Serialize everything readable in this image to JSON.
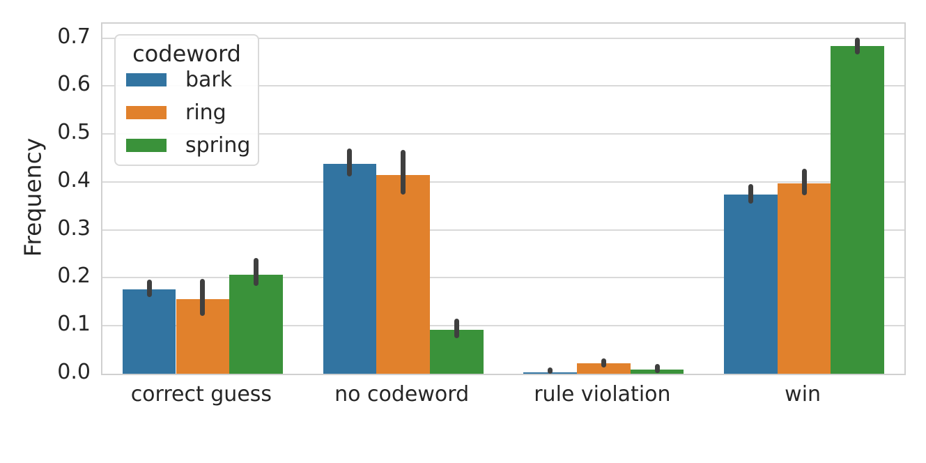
{
  "figure": {
    "background": "#ffffff",
    "text_color": "#262626",
    "grid_color": "#d9d9d9",
    "spine_color": "#d0d0d0",
    "errorbar_color": "#3f3f3f"
  },
  "chart_data": {
    "type": "bar",
    "title": "",
    "xlabel": "",
    "ylabel": "Frequency",
    "ylim": [
      0,
      0.73
    ],
    "grid": true,
    "ytick_labels": [
      "0.0",
      "0.1",
      "0.2",
      "0.3",
      "0.4",
      "0.5",
      "0.6",
      "0.7"
    ],
    "yticks": [
      0.0,
      0.1,
      0.2,
      0.3,
      0.4,
      0.5,
      0.6,
      0.7
    ],
    "categories": [
      "correct guess",
      "no codeword",
      "rule violation",
      "win"
    ],
    "legend": {
      "title": "codeword",
      "position": "upper-left"
    },
    "series": [
      {
        "name": "bark",
        "color": "#3274a1",
        "values": [
          0.176,
          0.437,
          0.003,
          0.374
        ],
        "ci_low": [
          0.16,
          0.411,
          0.0,
          0.355
        ],
        "ci_high": [
          0.196,
          0.47,
          0.013,
          0.396
        ]
      },
      {
        "name": "ring",
        "color": "#e1812c",
        "values": [
          0.155,
          0.415,
          0.022,
          0.397
        ],
        "ci_low": [
          0.12,
          0.374,
          0.013,
          0.372
        ],
        "ci_high": [
          0.198,
          0.467,
          0.032,
          0.427
        ]
      },
      {
        "name": "spring",
        "color": "#3a923a",
        "values": [
          0.207,
          0.091,
          0.008,
          0.683
        ],
        "ci_low": [
          0.183,
          0.074,
          0.002,
          0.666
        ],
        "ci_high": [
          0.242,
          0.115,
          0.02,
          0.701
        ]
      }
    ]
  }
}
